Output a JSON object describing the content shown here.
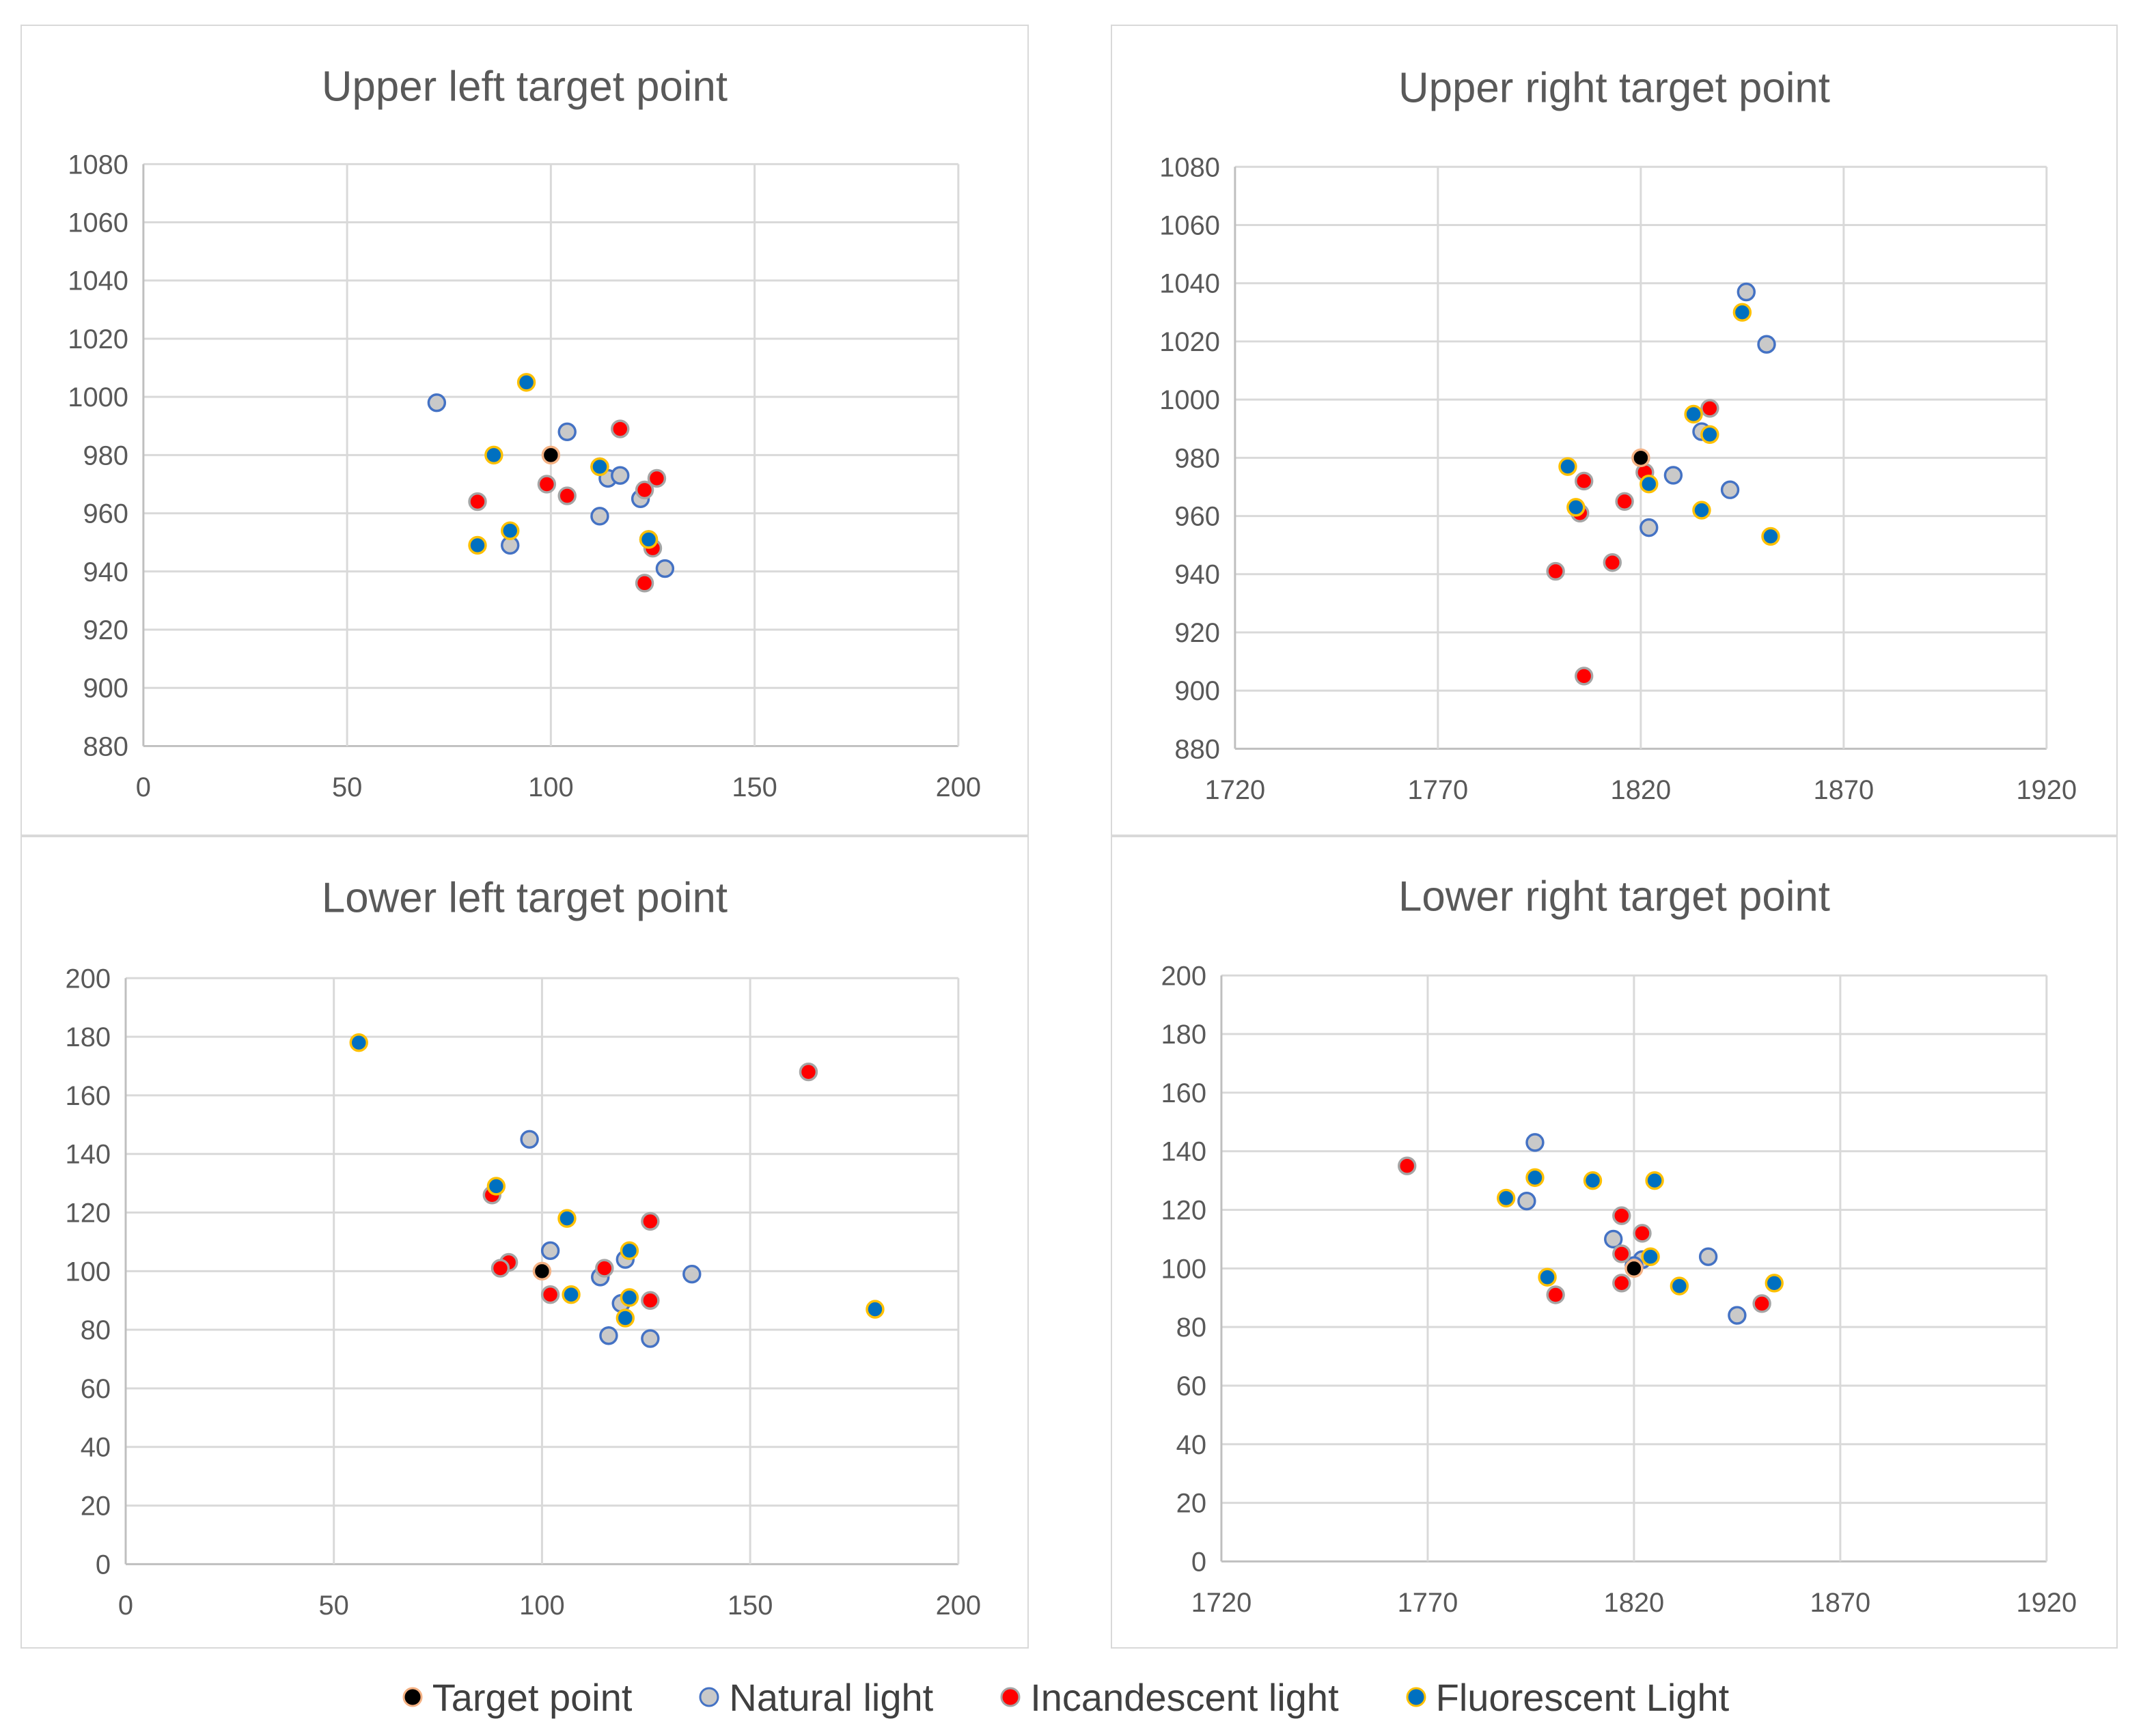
{
  "chart_data": [
    {
      "type": "scatter",
      "title": "Upper left target point",
      "xlim": [
        0,
        200
      ],
      "xticks": [
        0,
        50,
        100,
        150,
        200
      ],
      "ylim": [
        880,
        1080
      ],
      "yticks": [
        880,
        900,
        920,
        940,
        960,
        980,
        1000,
        1020,
        1040,
        1060,
        1080
      ],
      "series": [
        {
          "name": "Target point",
          "points": [
            [
              100,
              980
            ]
          ]
        },
        {
          "name": "Natural light",
          "points": [
            [
              72,
              998
            ],
            [
              104,
              988
            ],
            [
              112,
              976
            ],
            [
              114,
              972
            ],
            [
              117,
              973
            ],
            [
              112,
              959
            ],
            [
              122,
              965
            ],
            [
              90,
              949
            ],
            [
              128,
              941
            ],
            [
              124,
              951
            ]
          ]
        },
        {
          "name": "Incandescent light",
          "points": [
            [
              117,
              989
            ],
            [
              99,
              970
            ],
            [
              104,
              966
            ],
            [
              82,
              964
            ],
            [
              123,
              968
            ],
            [
              126,
              972
            ],
            [
              125,
              948
            ],
            [
              123,
              936
            ]
          ]
        },
        {
          "name": "Fluorescent Light",
          "points": [
            [
              94,
              1005
            ],
            [
              86,
              980
            ],
            [
              112,
              976
            ],
            [
              90,
              954
            ],
            [
              82,
              949
            ],
            [
              124,
              951
            ]
          ]
        }
      ]
    },
    {
      "type": "scatter",
      "title": "Upper right  target point",
      "xlim": [
        1720,
        1920
      ],
      "xticks": [
        1720,
        1770,
        1820,
        1870,
        1920
      ],
      "ylim": [
        880,
        1080
      ],
      "yticks": [
        880,
        900,
        920,
        940,
        960,
        980,
        1000,
        1020,
        1040,
        1060,
        1080
      ],
      "series": [
        {
          "name": "Target point",
          "points": [
            [
              1820,
              980
            ]
          ]
        },
        {
          "name": "Natural light",
          "points": [
            [
              1846,
              1037
            ],
            [
              1851,
              1019
            ],
            [
              1835,
              989
            ],
            [
              1828,
              974
            ],
            [
              1842,
              969
            ],
            [
              1822,
              956
            ]
          ]
        },
        {
          "name": "Incandescent light",
          "points": [
            [
              1837,
              997
            ],
            [
              1806,
              972
            ],
            [
              1821,
              975
            ],
            [
              1816,
              965
            ],
            [
              1805,
              961
            ],
            [
              1813,
              944
            ],
            [
              1799,
              941
            ],
            [
              1806,
              905
            ]
          ]
        },
        {
          "name": "Fluorescent Light",
          "points": [
            [
              1845,
              1030
            ],
            [
              1833,
              995
            ],
            [
              1837,
              988
            ],
            [
              1802,
              977
            ],
            [
              1822,
              971
            ],
            [
              1804,
              963
            ],
            [
              1835,
              962
            ],
            [
              1852,
              953
            ]
          ]
        }
      ]
    },
    {
      "type": "scatter",
      "title": "Lower left target point",
      "xlim": [
        0,
        200
      ],
      "xticks": [
        0,
        50,
        100,
        150,
        200
      ],
      "ylim": [
        0,
        200
      ],
      "yticks": [
        0,
        20,
        40,
        60,
        80,
        100,
        120,
        140,
        160,
        180,
        200
      ],
      "series": [
        {
          "name": "Target point",
          "points": [
            [
              100,
              100
            ]
          ]
        },
        {
          "name": "Natural light",
          "points": [
            [
              97,
              145
            ],
            [
              102,
              107
            ],
            [
              114,
              98
            ],
            [
              120,
              104
            ],
            [
              136,
              99
            ],
            [
              119,
              89
            ],
            [
              116,
              78
            ],
            [
              126,
              77
            ]
          ]
        },
        {
          "name": "Incandescent light",
          "points": [
            [
              164,
              168
            ],
            [
              88,
              126
            ],
            [
              126,
              117
            ],
            [
              92,
              103
            ],
            [
              90,
              101
            ],
            [
              115,
              101
            ],
            [
              102,
              92
            ],
            [
              126,
              90
            ]
          ]
        },
        {
          "name": "Fluorescent Light",
          "points": [
            [
              56,
              178
            ],
            [
              89,
              129
            ],
            [
              106,
              118
            ],
            [
              121,
              107
            ],
            [
              107,
              92
            ],
            [
              121,
              91
            ],
            [
              120,
              84
            ],
            [
              180,
              87
            ]
          ]
        }
      ]
    },
    {
      "type": "scatter",
      "title": "Lower right target point",
      "xlim": [
        1720,
        1920
      ],
      "xticks": [
        1720,
        1770,
        1820,
        1870,
        1920
      ],
      "ylim": [
        0,
        200
      ],
      "yticks": [
        0,
        20,
        40,
        60,
        80,
        100,
        120,
        140,
        160,
        180,
        200
      ],
      "series": [
        {
          "name": "Target point",
          "points": [
            [
              1820,
              100
            ]
          ]
        },
        {
          "name": "Natural light",
          "points": [
            [
              1796,
              143
            ],
            [
              1794,
              123
            ],
            [
              1815,
              110
            ],
            [
              1822,
              103
            ],
            [
              1838,
              104
            ],
            [
              1845,
              84
            ],
            [
              1820,
              101
            ]
          ]
        },
        {
          "name": "Incandescent light",
          "points": [
            [
              1765,
              135
            ],
            [
              1817,
              118
            ],
            [
              1822,
              112
            ],
            [
              1817,
              105
            ],
            [
              1817,
              95
            ],
            [
              1801,
              91
            ],
            [
              1851,
              88
            ]
          ]
        },
        {
          "name": "Fluorescent Light",
          "points": [
            [
              1796,
              131
            ],
            [
              1810,
              130
            ],
            [
              1825,
              130
            ],
            [
              1789,
              124
            ],
            [
              1824,
              104
            ],
            [
              1799,
              97
            ],
            [
              1831,
              94
            ],
            [
              1854,
              95
            ]
          ]
        }
      ]
    }
  ],
  "legend": [
    {
      "label": "Target point",
      "fill": "#000000",
      "stroke": "#f4b183"
    },
    {
      "label": "Natural light",
      "fill": "#c9c9c9",
      "stroke": "#4472c4"
    },
    {
      "label": "Incandescent light",
      "fill": "#ff0000",
      "stroke": "#a5a5a5"
    },
    {
      "label": "Fluorescent Light",
      "fill": "#0070c0",
      "stroke": "#ffc000"
    }
  ]
}
